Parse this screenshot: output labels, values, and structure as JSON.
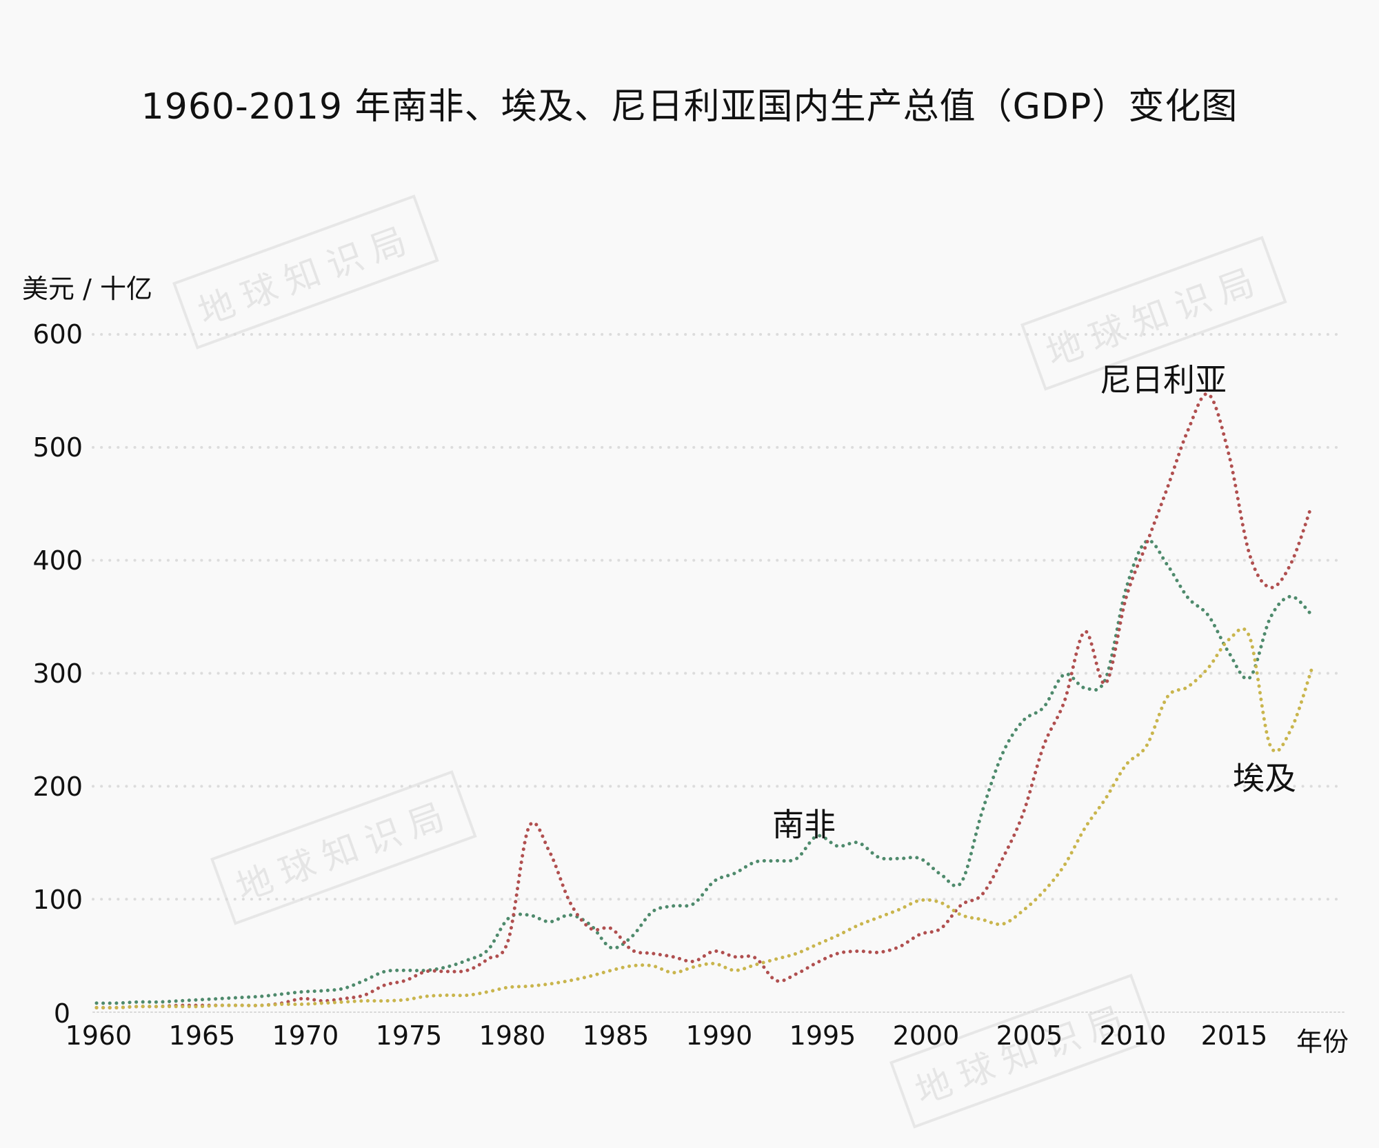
{
  "title": "1960-2019 年南非、埃及、尼日利亚国内生产总值（GDP）变化图",
  "watermark": "地球知识局",
  "chart_data": {
    "type": "line",
    "title": "1960-2019 年南非、埃及、尼日利亚国内生产总值（GDP）变化图",
    "xlabel": "年份",
    "ylabel": "美元 / 十亿",
    "ylim": [
      0,
      600
    ],
    "xlim": [
      1960,
      2019
    ],
    "yticks": [
      0,
      100,
      200,
      300,
      400,
      500,
      600
    ],
    "xticks": [
      1960,
      1965,
      1970,
      1975,
      1980,
      1985,
      1990,
      1995,
      2000,
      2005,
      2010,
      2015
    ],
    "grid": "horizontal dotted",
    "legend": "inline labels",
    "line_style": "dotted",
    "x": [
      1960,
      1961,
      1962,
      1963,
      1964,
      1965,
      1966,
      1967,
      1968,
      1969,
      1970,
      1971,
      1972,
      1973,
      1974,
      1975,
      1976,
      1977,
      1978,
      1979,
      1980,
      1981,
      1982,
      1983,
      1984,
      1985,
      1986,
      1987,
      1988,
      1989,
      1990,
      1991,
      1992,
      1993,
      1994,
      1995,
      1996,
      1997,
      1998,
      1999,
      2000,
      2001,
      2002,
      2003,
      2004,
      2005,
      2006,
      2007,
      2008,
      2009,
      2010,
      2011,
      2012,
      2013,
      2014,
      2015,
      2016,
      2017,
      2018,
      2019
    ],
    "series": [
      {
        "name": "南非",
        "color": "#4e8a6c",
        "values": [
          8,
          8,
          9,
          9,
          10,
          11,
          12,
          13,
          14,
          16,
          18,
          19,
          21,
          28,
          36,
          37,
          37,
          40,
          46,
          55,
          83,
          86,
          80,
          86,
          77,
          57,
          67,
          89,
          94,
          96,
          116,
          123,
          133,
          134,
          136,
          156,
          147,
          150,
          137,
          136,
          136,
          122,
          115,
          177,
          229,
          258,
          270,
          299,
          287,
          295,
          375,
          417,
          396,
          367,
          351,
          318,
          296,
          349,
          368,
          352
        ],
        "label": "南非",
        "label_pos": [
          1993.8,
          168
        ]
      },
      {
        "name": "尼日利亚",
        "color": "#b04f4f",
        "values": [
          4,
          4,
          5,
          5,
          6,
          6,
          6,
          6,
          6,
          8,
          12,
          10,
          12,
          15,
          24,
          28,
          36,
          36,
          37,
          47,
          64,
          164,
          142,
          97,
          74,
          74,
          55,
          52,
          49,
          45,
          54,
          49,
          48,
          28,
          34,
          44,
          52,
          54,
          53,
          58,
          69,
          74,
          95,
          104,
          136,
          176,
          236,
          275,
          337,
          291,
          367,
          415,
          464,
          515,
          547,
          493,
          405,
          376,
          397,
          448
        ],
        "label": "尼日利亚",
        "label_pos": [
          2011.5,
          556
        ]
      },
      {
        "name": "埃及",
        "color": "#c9b54d",
        "values": [
          4,
          4,
          5,
          5,
          5,
          5,
          6,
          6,
          6,
          7,
          7,
          8,
          9,
          10,
          10,
          11,
          14,
          15,
          15,
          18,
          22,
          23,
          25,
          28,
          32,
          37,
          41,
          41,
          35,
          40,
          43,
          37,
          42,
          47,
          52,
          60,
          68,
          77,
          84,
          91,
          99,
          97,
          86,
          82,
          78,
          90,
          107,
          130,
          163,
          189,
          219,
          236,
          279,
          288,
          305,
          330,
          332,
          236,
          250,
          303
        ],
        "label": "埃及",
        "label_pos": [
          2016.7,
          210
        ]
      }
    ]
  },
  "axes": {
    "y_unit_label": "美元 / 十亿",
    "x_unit_label": "年份",
    "y_tick_labels": [
      "600",
      "500",
      "400",
      "300",
      "200",
      "100",
      "0"
    ],
    "x_tick_labels": [
      "1960",
      "1965",
      "1970",
      "1975",
      "1980",
      "1985",
      "1990",
      "1995",
      "2000",
      "2005",
      "2010",
      "2015"
    ]
  },
  "annotations": {
    "south_africa": "南非",
    "nigeria": "尼日利亚",
    "egypt": "埃及"
  }
}
